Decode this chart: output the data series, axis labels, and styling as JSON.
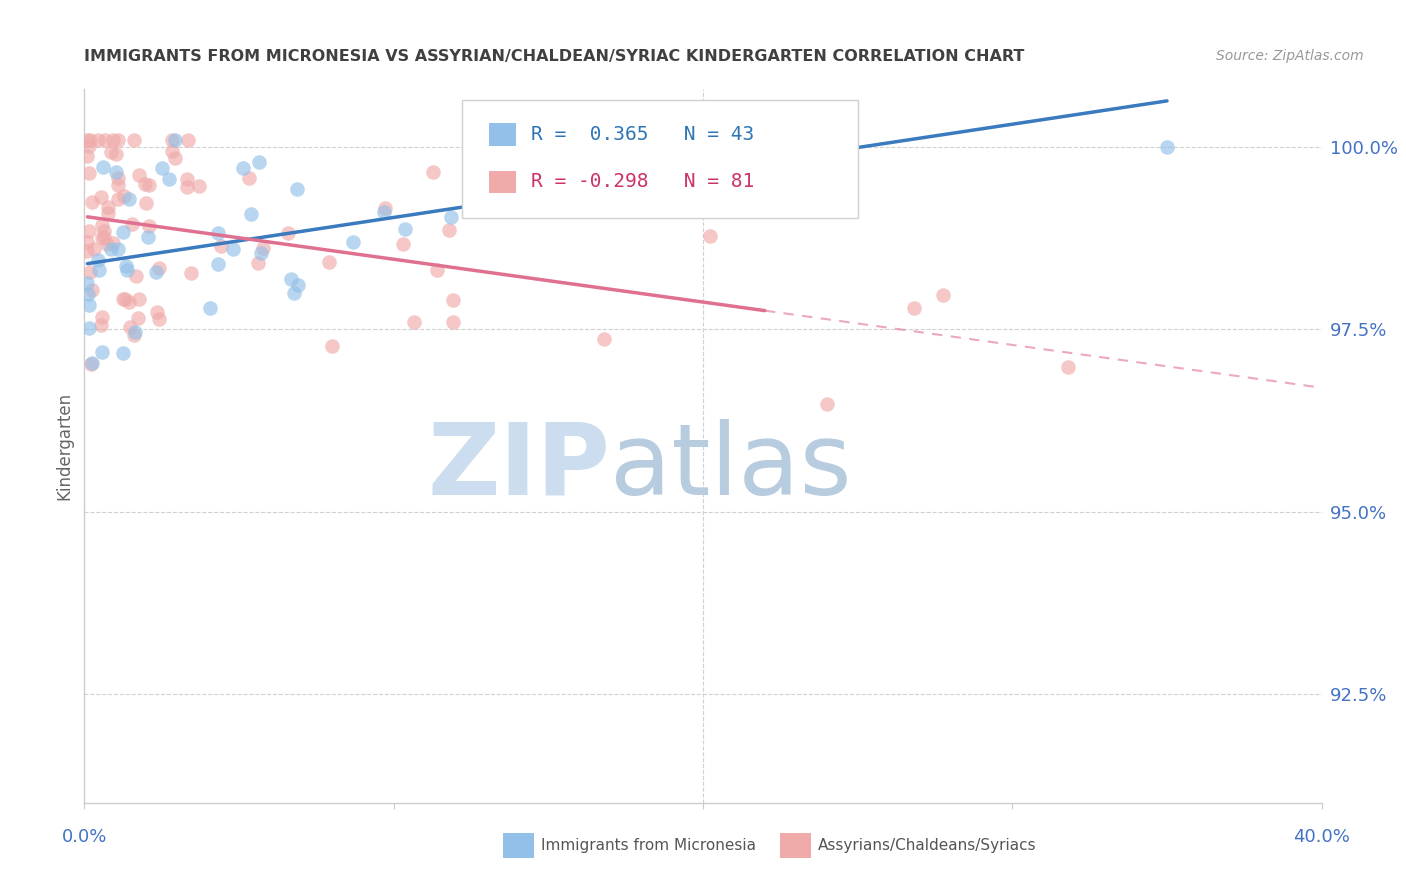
{
  "title": "IMMIGRANTS FROM MICRONESIA VS ASSYRIAN/CHALDEAN/SYRIAC KINDERGARTEN CORRELATION CHART",
  "source": "Source: ZipAtlas.com",
  "ylabel": "Kindergarten",
  "ytick_labels": [
    "100.0%",
    "97.5%",
    "95.0%",
    "92.5%"
  ],
  "ytick_values": [
    1.0,
    0.975,
    0.95,
    0.925
  ],
  "xlim": [
    0.0,
    0.4
  ],
  "ylim": [
    0.91,
    1.008
  ],
  "blue_R": 0.365,
  "blue_N": 43,
  "pink_R": -0.298,
  "pink_N": 81,
  "legend_label_blue": "Immigrants from Micronesia",
  "legend_label_pink": "Assyrians/Chaldeans/Syriacs",
  "blue_color": "#92c0e8",
  "pink_color": "#f0aaaa",
  "blue_line_color": "#3a7abf",
  "pink_line_color": "#e07090",
  "grid_color": "#d0d0d0",
  "axis_color": "#cccccc",
  "title_color": "#404040",
  "tick_color": "#4472c4",
  "watermark_color_zip": "#ccddf0",
  "watermark_color_atlas": "#b8ccdf"
}
